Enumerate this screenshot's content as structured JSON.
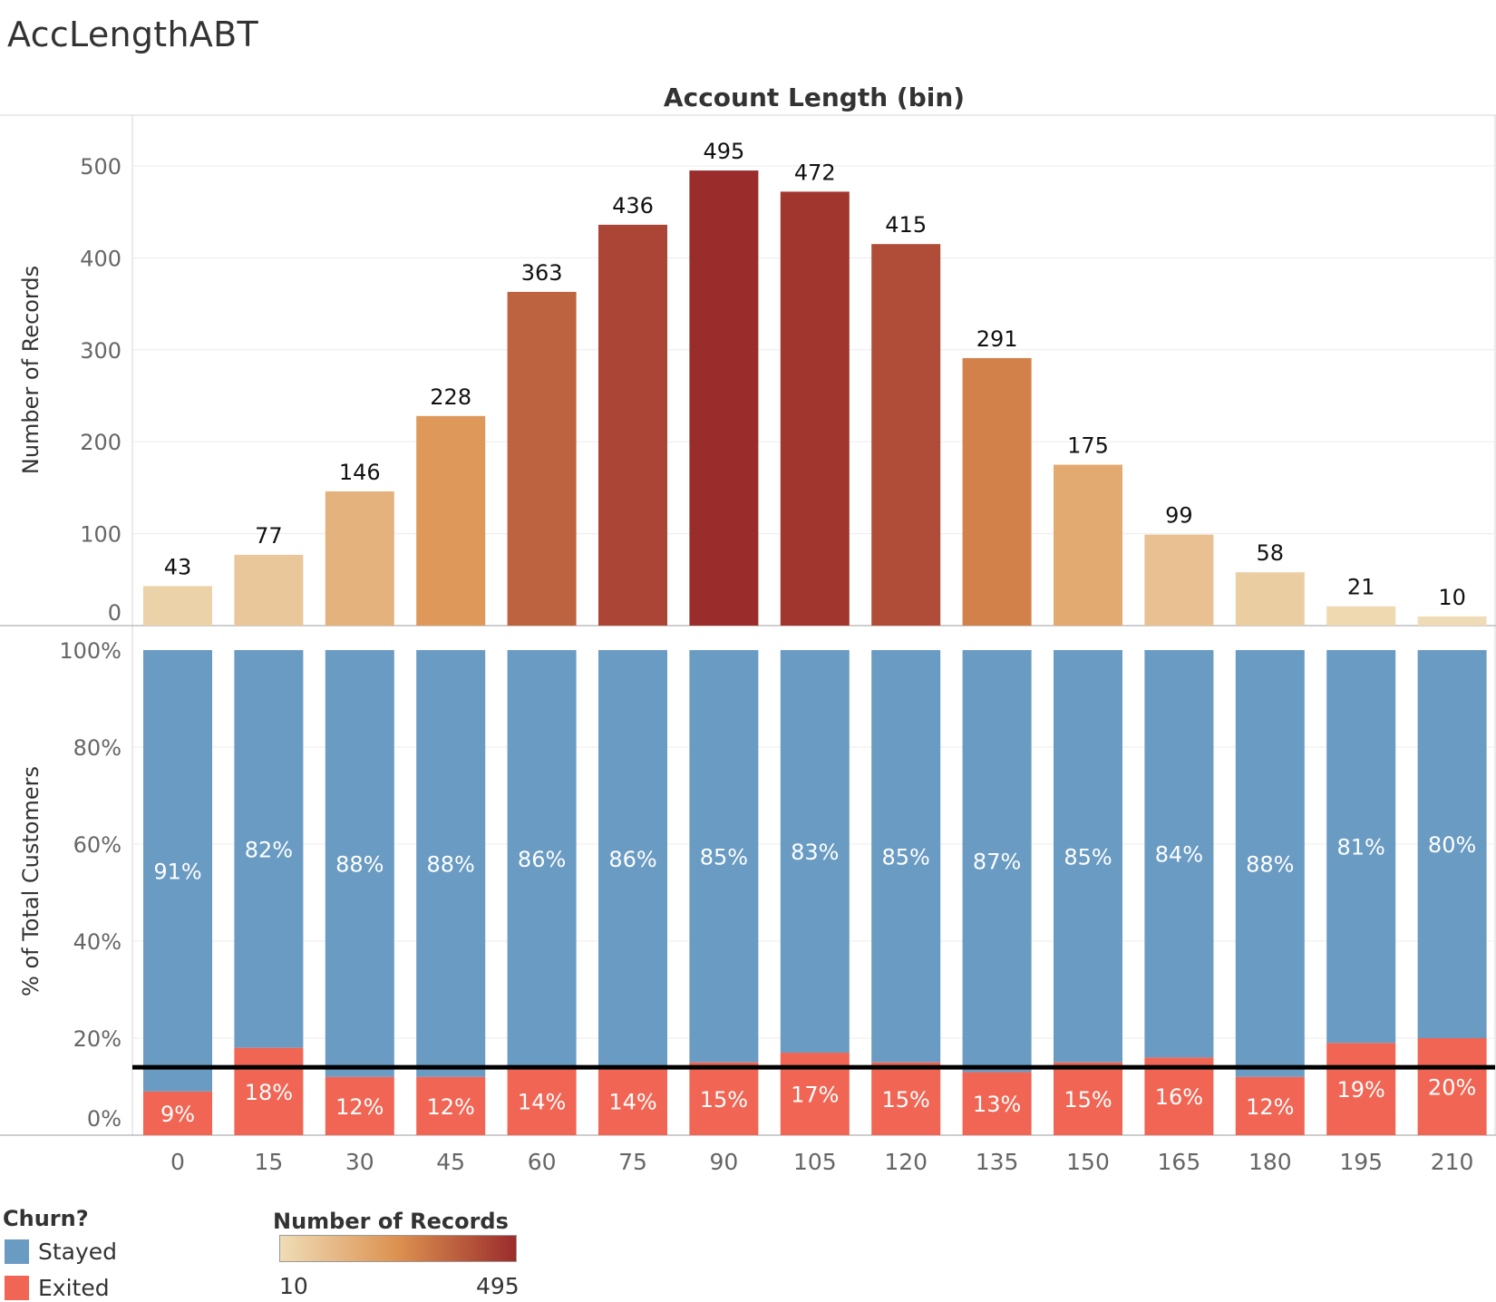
{
  "sheet": {
    "title": "AccLengthABT"
  },
  "chart_data": {
    "type": "bar",
    "title": "Account Length (bin)",
    "xlabel": "Account Length (bin)",
    "categories": [
      "0",
      "15",
      "30",
      "45",
      "60",
      "75",
      "90",
      "105",
      "120",
      "135",
      "150",
      "165",
      "180",
      "195",
      "210"
    ],
    "panels": [
      {
        "type": "bar",
        "ylabel": "Number of Records",
        "ylim": [
          0,
          530
        ],
        "yticks": [
          "0",
          "100",
          "200",
          "300",
          "400",
          "500"
        ],
        "values": [
          43,
          77,
          146,
          228,
          363,
          436,
          495,
          472,
          415,
          291,
          175,
          99,
          58,
          21,
          10
        ],
        "color_scale": {
          "min": 10,
          "max": 495,
          "low_color": "#efdcb6",
          "high_color": "#9b2c2c"
        },
        "gridlines": true
      },
      {
        "type": "stacked_bar",
        "ylabel": "% of Total Customers",
        "ylim": [
          0,
          100
        ],
        "yticks": [
          "0%",
          "20%",
          "40%",
          "60%",
          "80%",
          "100%"
        ],
        "series": [
          {
            "name": "Exited",
            "color": "#f06553",
            "values": [
              9,
              18,
              12,
              12,
              14,
              14,
              15,
              17,
              15,
              13,
              15,
              16,
              12,
              19,
              20
            ]
          },
          {
            "name": "Stayed",
            "color": "#6a9bc3",
            "values": [
              91,
              82,
              88,
              88,
              86,
              86,
              85,
              83,
              85,
              87,
              85,
              84,
              88,
              81,
              80
            ]
          }
        ],
        "reference_line": {
          "value": 14,
          "color": "#000000"
        },
        "gridlines": true
      }
    ]
  },
  "legend": {
    "churn": {
      "title": "Churn?",
      "items": [
        {
          "label": "Stayed",
          "color": "#6a9bc3"
        },
        {
          "label": "Exited",
          "color": "#f06553"
        }
      ]
    },
    "records": {
      "title": "Number of Records",
      "min_label": "10",
      "max_label": "495"
    }
  }
}
